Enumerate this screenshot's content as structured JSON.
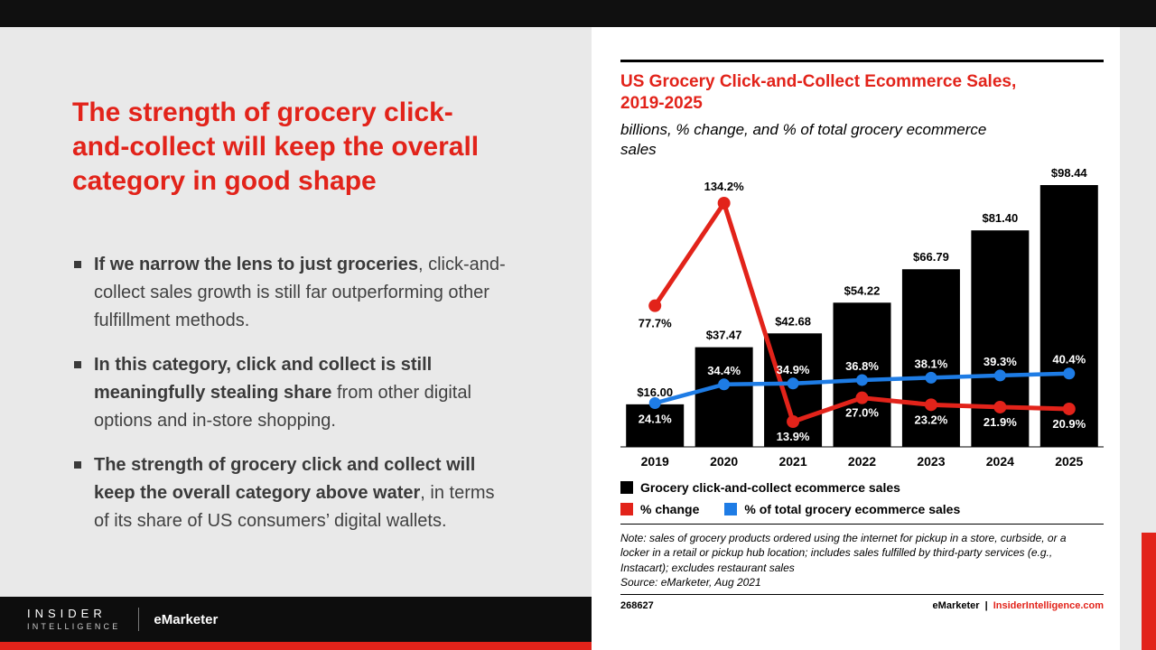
{
  "slide": {
    "headline_lines": [
      "The strength of grocery click-",
      "and-collect will keep the overall",
      "category in good shape"
    ],
    "bullets": [
      {
        "bold": "If we narrow the lens to just groceries",
        "rest": ", click-and-collect sales growth is still far outperforming other fulfillment methods."
      },
      {
        "bold": "In this category, click and collect is still meaningfully stealing share",
        "rest": " from other digital options and in-store shopping."
      },
      {
        "bold": "The strength of grocery click and collect will keep the overall category above water",
        "rest": ", in terms of its share of US consumers’ digital wallets."
      }
    ],
    "footer": {
      "brand_top": "INSIDER",
      "brand_bottom": "INTELLIGENCE",
      "brand_secondary": "eMarketer"
    },
    "accent_color": "#e2231a"
  },
  "chart": {
    "title_lines": [
      "US Grocery Click-and-Collect Ecommerce Sales,",
      "2019-2025"
    ],
    "subtitle_lines": [
      "billions, % change, and % of total grocery ecommerce",
      "sales"
    ],
    "legend": [
      {
        "label": "Grocery click-and-collect ecommerce sales",
        "color": "#000000"
      },
      {
        "label": "% change",
        "color": "#e2231a"
      },
      {
        "label": "% of total grocery ecommerce sales",
        "color": "#1e7ce5"
      }
    ],
    "note": "Note: sales of grocery products ordered using the internet for pickup in a store, curbside, or a locker in a retail or pickup hub location; includes sales fulfilled by third-party services (e.g., Instacart); excludes restaurant sales",
    "source": "Source: eMarketer, Aug 2021",
    "chart_id": "268627",
    "footer_brand": "eMarketer",
    "footer_sep": "|",
    "footer_site": "InsiderIntelligence.com"
  },
  "chart_data": {
    "type": "bar",
    "subtype": "combo-bar-line",
    "categories": [
      "2019",
      "2020",
      "2021",
      "2022",
      "2023",
      "2024",
      "2025"
    ],
    "series": [
      {
        "name": "Grocery click-and-collect ecommerce sales",
        "type": "bar",
        "color": "#000000",
        "values": [
          16.0,
          37.47,
          42.68,
          54.22,
          66.79,
          81.4,
          98.44
        ],
        "labels": [
          "$16.00",
          "$37.47",
          "$42.68",
          "$54.22",
          "$66.79",
          "$81.40",
          "$98.44"
        ]
      },
      {
        "name": "% change",
        "type": "line",
        "color": "#e2231a",
        "values": [
          77.7,
          134.2,
          13.9,
          27.0,
          23.2,
          21.9,
          20.9
        ],
        "labels": [
          "77.7%",
          "134.2%",
          "13.9%",
          "27.0%",
          "23.2%",
          "21.9%",
          "20.9%"
        ]
      },
      {
        "name": "% of total grocery ecommerce sales",
        "type": "line",
        "color": "#1e7ce5",
        "values": [
          24.1,
          34.4,
          34.9,
          36.8,
          38.1,
          39.3,
          40.4
        ],
        "labels": [
          "24.1%",
          "34.4%",
          "34.9%",
          "36.8%",
          "38.1%",
          "39.3%",
          "40.4%"
        ]
      }
    ],
    "title": "US Grocery Click-and-Collect Ecommerce Sales, 2019-2025",
    "xlabel": "",
    "ylabel_bars": "billions of $",
    "ylabel_lines": "%",
    "ylim_bars": [
      0,
      100
    ],
    "ylim_lines": [
      0,
      140
    ],
    "grid": false,
    "legend_position": "bottom"
  }
}
